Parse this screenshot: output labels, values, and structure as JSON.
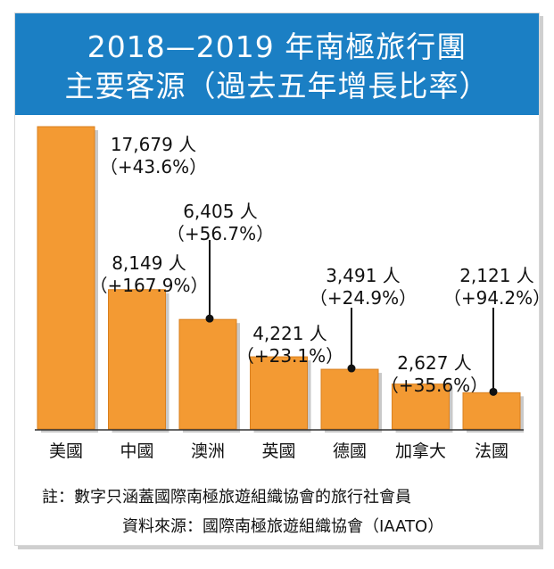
{
  "chart_data": {
    "type": "bar",
    "title": "2018—2019 年南極旅行團",
    "subtitle": "主要客源（過去五年增長比率）",
    "categories": [
      "美國",
      "中國",
      "澳洲",
      "英國",
      "德國",
      "加拿大",
      "法國"
    ],
    "values": [
      17679,
      8149,
      6405,
      4221,
      3491,
      2627,
      2121
    ],
    "value_labels": [
      "17,679 人",
      "8,149 人",
      "6,405 人",
      "4,221 人",
      "3,491 人",
      "2,627 人",
      "2,121 人"
    ],
    "growth_labels": [
      "（+43.6%）",
      "（+167.9%）",
      "（+56.7%）",
      "（+23.1%）",
      "（+24.9%）",
      "（+35.6%）",
      "（+94.2%）"
    ],
    "ylim": [
      0,
      17679
    ],
    "grid": false,
    "bar_color": "#f39a33"
  },
  "footer": {
    "note": "註：數字只涵蓋國際南極旅遊組織協會的旅行社會員",
    "source": "資料來源：國際南極旅遊組織協會（IAATO）"
  }
}
